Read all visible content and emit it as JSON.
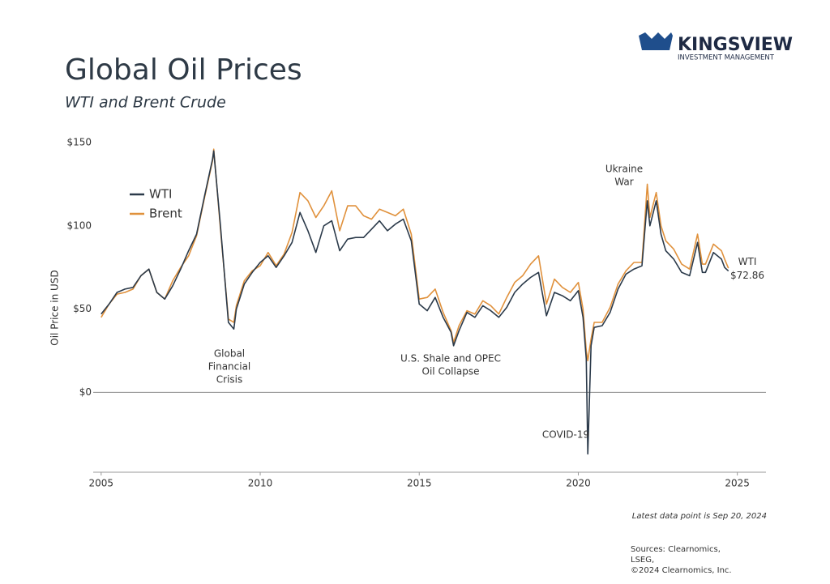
{
  "header": {
    "brand": "KINGSVIEW",
    "brand_sub": "INVESTMENT MANAGEMENT"
  },
  "chart_data": {
    "type": "line",
    "title": "Global Oil Prices",
    "subtitle": "WTI and Brent Crude",
    "y_label": "Oil Price in USD",
    "x": [
      2005.0,
      2005.25,
      2005.5,
      2005.75,
      2006.0,
      2006.25,
      2006.5,
      2006.75,
      2007.0,
      2007.25,
      2007.5,
      2007.75,
      2008.0,
      2008.25,
      2008.5,
      2008.54,
      2008.75,
      2009.0,
      2009.17,
      2009.25,
      2009.5,
      2009.75,
      2010.0,
      2010.25,
      2010.5,
      2010.75,
      2011.0,
      2011.25,
      2011.5,
      2011.75,
      2012.0,
      2012.25,
      2012.5,
      2012.75,
      2013.0,
      2013.25,
      2013.5,
      2013.75,
      2014.0,
      2014.25,
      2014.5,
      2014.75,
      2015.0,
      2015.25,
      2015.5,
      2015.75,
      2016.0,
      2016.08,
      2016.25,
      2016.5,
      2016.75,
      2017.0,
      2017.25,
      2017.5,
      2017.75,
      2018.0,
      2018.25,
      2018.5,
      2018.75,
      2019.0,
      2019.25,
      2019.5,
      2019.75,
      2020.0,
      2020.15,
      2020.25,
      2020.3,
      2020.4,
      2020.5,
      2020.75,
      2021.0,
      2021.25,
      2021.5,
      2021.75,
      2022.0,
      2022.17,
      2022.25,
      2022.45,
      2022.6,
      2022.75,
      2023.0,
      2023.25,
      2023.5,
      2023.75,
      2023.9,
      2024.0,
      2024.25,
      2024.5,
      2024.6,
      2024.72
    ],
    "series": [
      {
        "name": "WTI",
        "color": "#2b3a4a",
        "values": [
          47,
          53,
          60,
          62,
          63,
          70,
          74,
          60,
          56,
          64,
          74,
          85,
          95,
          118,
          140,
          145,
          100,
          42,
          38,
          50,
          65,
          72,
          78,
          82,
          75,
          82,
          90,
          108,
          97,
          84,
          100,
          103,
          85,
          92,
          93,
          93,
          98,
          103,
          97,
          101,
          104,
          91,
          53,
          49,
          57,
          45,
          36,
          28,
          37,
          48,
          45,
          52,
          49,
          45,
          51,
          60,
          65,
          69,
          72,
          46,
          60,
          58,
          55,
          61,
          45,
          20,
          -37,
          28,
          39,
          40,
          48,
          62,
          71,
          74,
          76,
          115,
          100,
          115,
          95,
          85,
          80,
          72,
          70,
          90,
          72,
          72,
          84,
          80,
          75,
          72.86
        ]
      },
      {
        "name": "Brent",
        "color": "#e0913c",
        "values": [
          45,
          53,
          59,
          60,
          62,
          70,
          74,
          60,
          56,
          67,
          75,
          82,
          94,
          117,
          139,
          146,
          98,
          44,
          42,
          52,
          67,
          73,
          76,
          84,
          76,
          83,
          96,
          120,
          115,
          105,
          112,
          121,
          97,
          112,
          112,
          106,
          104,
          110,
          108,
          106,
          110,
          95,
          56,
          57,
          62,
          48,
          37,
          30,
          40,
          49,
          47,
          55,
          52,
          47,
          57,
          66,
          70,
          77,
          82,
          53,
          68,
          63,
          60,
          66,
          50,
          25,
          19,
          32,
          42,
          42,
          51,
          65,
          73,
          78,
          78,
          125,
          105,
          120,
          100,
          91,
          86,
          77,
          74,
          95,
          77,
          77,
          89,
          85,
          80,
          74.5
        ]
      }
    ],
    "xlim": [
      2004.75,
      2025.9
    ],
    "xticks": [
      2005,
      2010,
      2015,
      2020,
      2025
    ],
    "ylim": [
      -48,
      150
    ],
    "yticks": [
      {
        "value": 0,
        "label": "$0"
      },
      {
        "value": 50,
        "label": "$50"
      },
      {
        "value": 100,
        "label": "$100"
      },
      {
        "value": 150,
        "label": "$150"
      }
    ],
    "hline": 0,
    "legend": "upper-left",
    "annotations": [
      [
        "Global",
        "Financial",
        "Crisis"
      ],
      [
        "U.S. Shale and OPEC",
        "Oil Collapse"
      ],
      [
        "COVID-19"
      ],
      [
        "Ukraine",
        "War"
      ]
    ],
    "end_label": {
      "name": "WTI",
      "label": "$72.86"
    },
    "note": "Latest data point is Sep 20, 2024",
    "sources": [
      "Sources: Clearnomics,",
      "LSEG,",
      "©2024 Clearnomics, Inc."
    ]
  }
}
